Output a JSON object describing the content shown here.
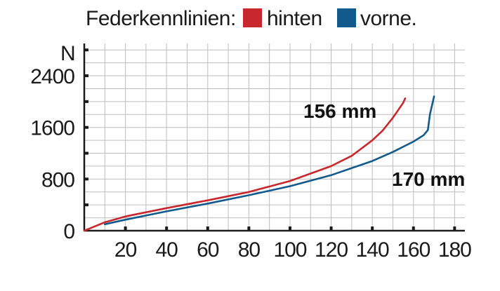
{
  "chart_data": {
    "type": "line",
    "title": "Federkennlinien:",
    "ylabel": "N",
    "xlim": [
      0,
      185
    ],
    "ylim": [
      0,
      2900
    ],
    "xticks": [
      20,
      40,
      60,
      80,
      100,
      120,
      140,
      160,
      180
    ],
    "yticks": [
      0,
      800,
      1600,
      2400
    ],
    "grid": true,
    "legend_position": "top",
    "series": [
      {
        "name": "hinten",
        "color": "#c8282d",
        "annotation": "156 mm",
        "x": [
          0,
          10,
          20,
          40,
          60,
          80,
          100,
          120,
          130,
          140,
          145,
          150,
          155,
          156
        ],
        "y": [
          0,
          130,
          220,
          350,
          470,
          600,
          770,
          1000,
          1160,
          1400,
          1550,
          1750,
          1980,
          2050
        ]
      },
      {
        "name": "vorne.",
        "color": "#135a8c",
        "annotation": "170 mm",
        "x": [
          10,
          20,
          40,
          60,
          80,
          100,
          120,
          140,
          150,
          160,
          165,
          167,
          168,
          170
        ],
        "y": [
          100,
          170,
          300,
          420,
          550,
          690,
          860,
          1080,
          1220,
          1380,
          1480,
          1560,
          1800,
          2080
        ]
      }
    ]
  }
}
